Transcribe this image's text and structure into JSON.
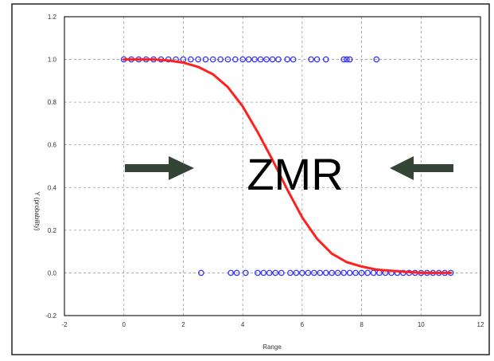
{
  "chart_data": {
    "type": "scatter",
    "xlabel": "Range",
    "ylabel": "Y (probability)",
    "xlim": [
      -2,
      12
    ],
    "ylim": [
      -0.2,
      1.2
    ],
    "xticks": [
      "-2",
      "0",
      "2",
      "4",
      "6",
      "8",
      "10",
      "12"
    ],
    "yticks": [
      "-0.2",
      "0.0",
      "0.2",
      "0.4",
      "0.6",
      "0.8",
      "1.0",
      "1.2"
    ],
    "grid": true,
    "annotation": "ZMR",
    "colors": {
      "points": "#3333ff",
      "curve": "#ff2020",
      "arrows": "#354535",
      "grid": "#999999",
      "frame": "#222222"
    },
    "series": [
      {
        "kind": "points",
        "x": [
          0,
          0.25,
          0.5,
          0.75,
          1,
          1.25,
          1.5,
          1.75,
          2,
          2.25,
          2.5,
          2.75,
          3,
          3.25,
          3.5,
          3.75,
          4,
          4.2,
          4.4,
          4.6,
          4.8,
          5,
          5.2,
          5.5,
          5.7,
          6.3,
          6.5,
          6.8,
          7.4,
          7.5,
          7.6,
          8.5
        ],
        "y": [
          1,
          1,
          1,
          1,
          1,
          1,
          1,
          1,
          1,
          1,
          1,
          1,
          1,
          1,
          1,
          1,
          1,
          1,
          1,
          1,
          1,
          1,
          1,
          1,
          1,
          1,
          1,
          1,
          1,
          1,
          1,
          1
        ]
      },
      {
        "kind": "points",
        "x": [
          2.6,
          3.6,
          3.8,
          4.1,
          4.5,
          4.7,
          4.9,
          5.1,
          5.3,
          5.6,
          5.8,
          6.0,
          6.2,
          6.4,
          6.6,
          6.8,
          7.0,
          7.2,
          7.4,
          7.6,
          7.8,
          8.0,
          8.2,
          8.4,
          8.6,
          8.8,
          9.0,
          9.2,
          9.4,
          9.6,
          9.8,
          10.0,
          10.2,
          10.4,
          10.6,
          10.8,
          11.0
        ],
        "y": [
          0,
          0,
          0,
          0,
          0,
          0,
          0,
          0,
          0,
          0,
          0,
          0,
          0,
          0,
          0,
          0,
          0,
          0,
          0,
          0,
          0,
          0,
          0,
          0,
          0,
          0,
          0,
          0,
          0,
          0,
          0,
          0,
          0,
          0,
          0,
          0,
          0
        ]
      },
      {
        "kind": "curve",
        "x": [
          0,
          0.5,
          1,
          1.5,
          2,
          2.5,
          3,
          3.5,
          4,
          4.5,
          5,
          5.5,
          6,
          6.5,
          7,
          7.5,
          8,
          8.5,
          9,
          9.5,
          10,
          10.5,
          11
        ],
        "y": [
          1.0,
          1.0,
          1.0,
          0.995,
          0.985,
          0.965,
          0.93,
          0.87,
          0.78,
          0.66,
          0.53,
          0.39,
          0.26,
          0.16,
          0.09,
          0.05,
          0.03,
          0.015,
          0.01,
          0.005,
          0.0,
          0.0,
          0.0
        ]
      }
    ]
  }
}
